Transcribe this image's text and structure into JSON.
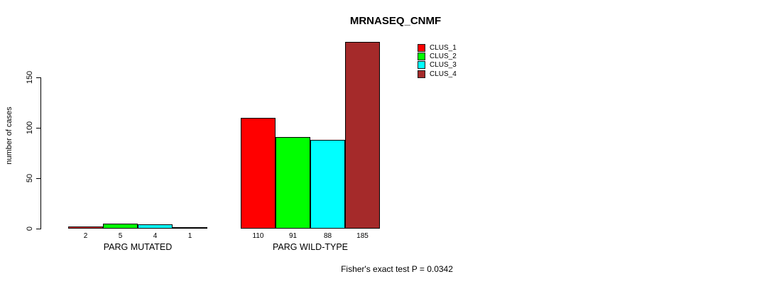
{
  "chart_data": {
    "type": "bar",
    "title": "MRNASEQ_CNMF",
    "ylabel": "number of cases",
    "ylim": [
      0,
      185
    ],
    "yticks": [
      0,
      50,
      100,
      150
    ],
    "grid": false,
    "legend_position": "top-right",
    "categories": [
      "PARG MUTATED",
      "PARG WILD-TYPE"
    ],
    "series": [
      {
        "name": "CLUS_1",
        "color": "#ff0000",
        "values": [
          2,
          110
        ]
      },
      {
        "name": "CLUS_2",
        "color": "#00ff00",
        "values": [
          5,
          91
        ]
      },
      {
        "name": "CLUS_3",
        "color": "#00ffff",
        "values": [
          4,
          88
        ]
      },
      {
        "name": "CLUS_4",
        "color": "#a52a2a",
        "values": [
          1,
          185
        ]
      }
    ],
    "bar_value_labels": [
      [
        "2",
        "5",
        "4",
        "1"
      ],
      [
        "110",
        "91",
        "88",
        "185"
      ]
    ],
    "annotation": "Fisher's exact test P = 0.0342"
  }
}
